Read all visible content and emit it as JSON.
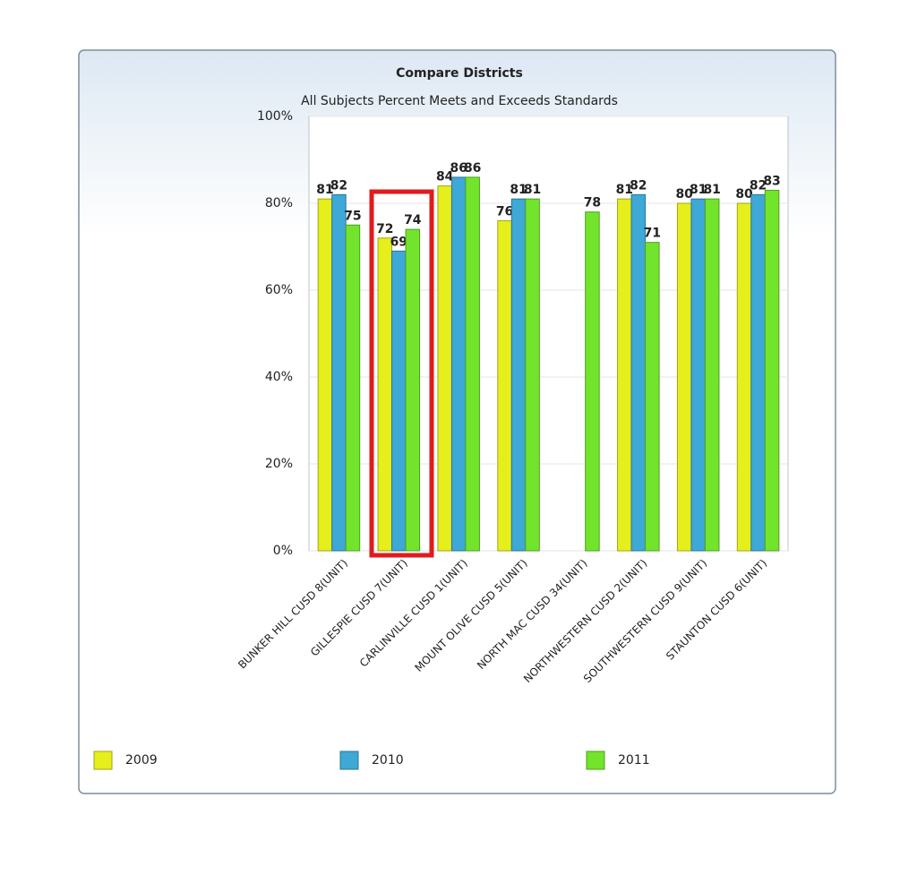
{
  "chart_data": {
    "type": "bar",
    "title": "Compare Districts",
    "subtitle": "All Subjects Percent Meets and Exceeds Standards",
    "categories": [
      "BUNKER HILL CUSD 8(UNIT)",
      "GILLESPIE CUSD 7(UNIT)",
      "CARLINVILLE CUSD 1(UNIT)",
      "MOUNT OLIVE CUSD 5(UNIT)",
      "NORTH MAC CUSD 34(UNIT)",
      "NORTHWESTERN CUSD 2(UNIT)",
      "SOUTHWESTERN CUSD 9(UNIT)",
      "STAUNTON CUSD 6(UNIT)"
    ],
    "series": [
      {
        "name": "2009",
        "color": "#e6ee1c",
        "values": [
          81,
          72,
          84,
          76,
          null,
          81,
          80,
          80
        ]
      },
      {
        "name": "2010",
        "color": "#3ea8d6",
        "values": [
          82,
          69,
          86,
          81,
          null,
          82,
          81,
          82
        ]
      },
      {
        "name": "2011",
        "color": "#72e42c",
        "values": [
          75,
          74,
          86,
          81,
          78,
          71,
          81,
          83
        ]
      }
    ],
    "ylim": [
      0,
      100
    ],
    "yticks": [
      {
        "value": 0,
        "label": "0%"
      },
      {
        "value": 20,
        "label": "20%"
      },
      {
        "value": 40,
        "label": "40%"
      },
      {
        "value": 60,
        "label": "60%"
      },
      {
        "value": 80,
        "label": "80%"
      },
      {
        "value": 100,
        "label": "100%"
      }
    ],
    "grid": true
  }
}
